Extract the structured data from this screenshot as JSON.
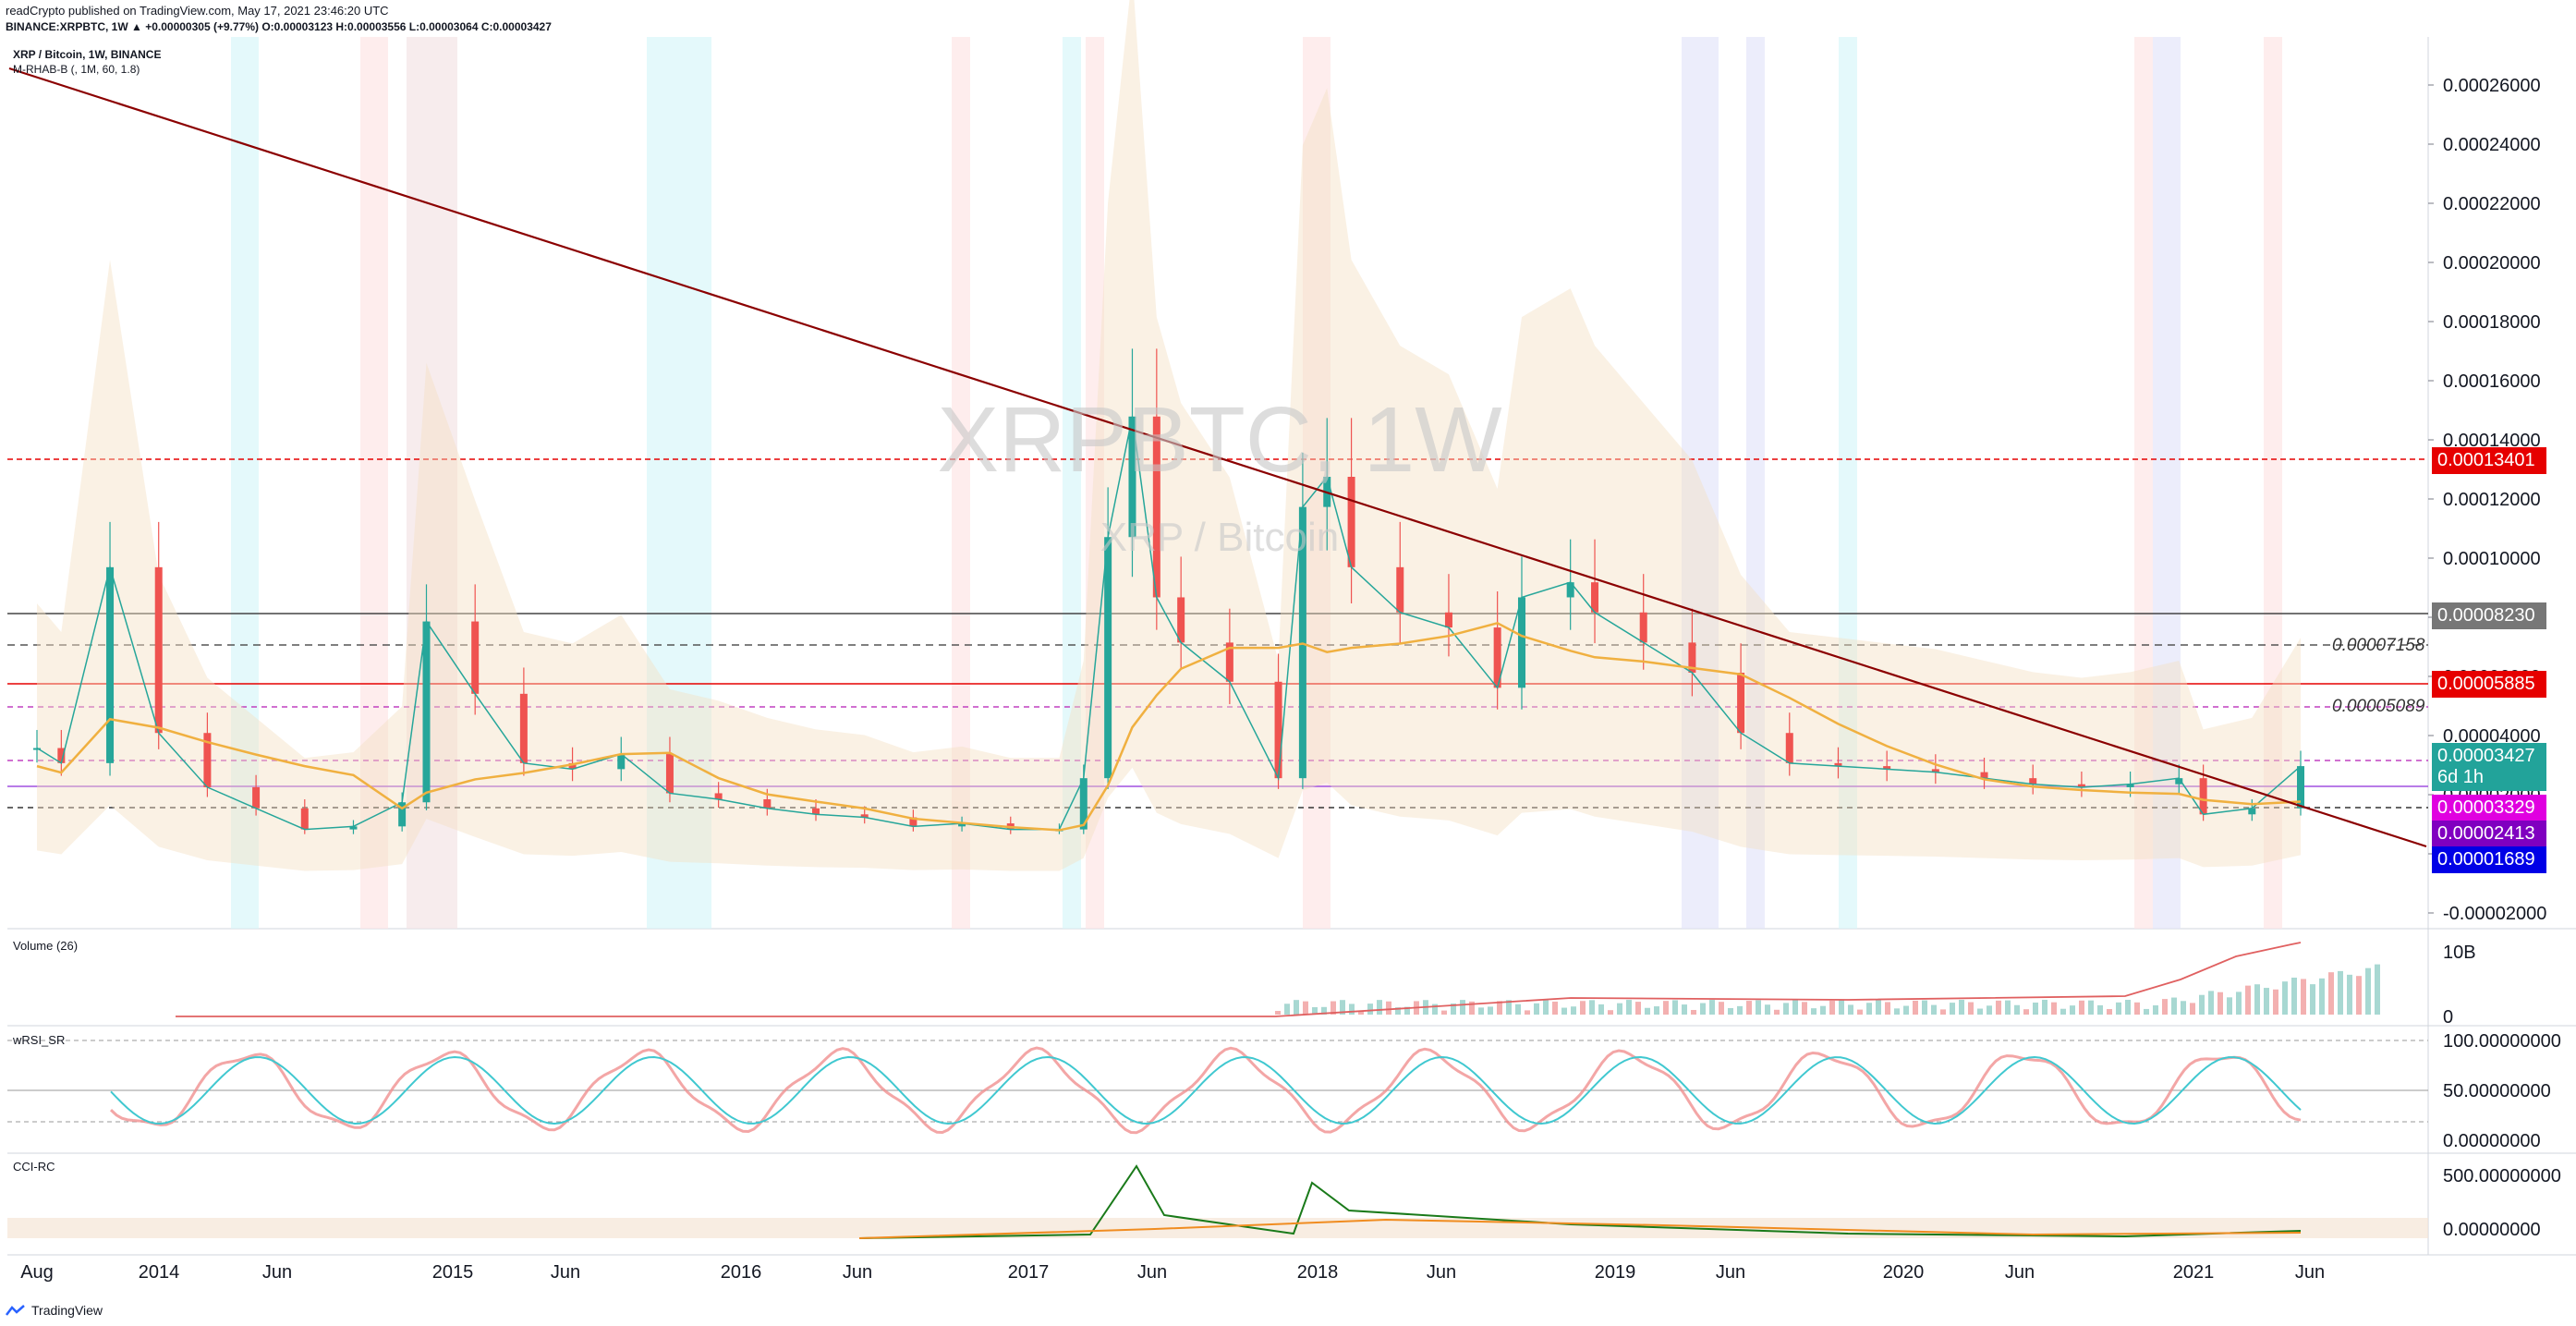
{
  "header": {
    "published": "readCrypto published on TradingView.com, May 17, 2021 23:46:20 UTC",
    "symbol_line": "BINANCE:XRPBTC, 1W ▲ +0.00000305 (+9.77%) O:0.00003123 H:0.00003556 L:0.00003064 C:0.00003427"
  },
  "legend": {
    "title": "XRP / Bitcoin, 1W, BINANCE",
    "indicator": "M-RHAB-B (, 1M, 60, 1.8)"
  },
  "watermark": {
    "symbol": "XRPBTC, 1W",
    "name": "XRP / Bitcoin"
  },
  "panes": {
    "volume": "Volume (26)",
    "rsi": "wRSI_SR",
    "cci": "CCI-RC"
  },
  "price_axis_ticks": [
    "0.00026000",
    "0.00024000",
    "0.00022000",
    "0.00020000",
    "0.00018000",
    "0.00016000",
    "0.00014000",
    "0.00012000",
    "0.00010000",
    "0.00008000",
    "0.00006000",
    "0.00004000",
    "0.00002000",
    "0.00000000",
    "-0.00002000"
  ],
  "volume_axis_ticks": [
    "10B",
    "0"
  ],
  "rsi_axis_ticks": [
    "100.00000000",
    "50.00000000",
    "0.00000000"
  ],
  "cci_axis_ticks": [
    "500.00000000",
    "0.00000000"
  ],
  "time_axis_labels": [
    "Aug",
    "2014",
    "Jun",
    "2015",
    "Jun",
    "2016",
    "Jun",
    "2017",
    "Jun",
    "2018",
    "Jun",
    "2019",
    "Jun",
    "2020",
    "Jun",
    "2021",
    "Jun"
  ],
  "price_labels": [
    {
      "text": "0.00013401",
      "color": "#e60000"
    },
    {
      "text": "0.00008230",
      "color": "#777777"
    },
    {
      "text": "0.00005885",
      "color": "#e60000"
    },
    {
      "text": "0.00003427",
      "sub": "6d 1h",
      "color": "#22a39a"
    },
    {
      "text": "0.00003329",
      "color": "#e000e0"
    },
    {
      "text": "0.00002413",
      "color": "#8000c0"
    },
    {
      "text": "0.00001689",
      "color": "#0000e6"
    }
  ],
  "level_labels": [
    "0.00007158",
    "0.00005089"
  ],
  "footer": {
    "brand": "TradingView"
  },
  "colors": {
    "trendline": "#8b0000",
    "ma_orange": "#f0b040",
    "ma_blue": "#3a7bd5",
    "up": "#26a69a",
    "down": "#ef5350"
  },
  "chart_data": {
    "type": "line",
    "title": "XRPBTC, 1W",
    "ylim": [
      -2e-05,
      0.00027
    ],
    "x": [
      "2013-08",
      "2013-09",
      "2013-11",
      "2014-01",
      "2014-03",
      "2014-05",
      "2014-07",
      "2014-09",
      "2014-11",
      "2014-12",
      "2015-02",
      "2015-04",
      "2015-06",
      "2015-08",
      "2015-10",
      "2015-12",
      "2016-02",
      "2016-04",
      "2016-06",
      "2016-08",
      "2016-10",
      "2016-12",
      "2017-02",
      "2017-03",
      "2017-04",
      "2017-05",
      "2017-06",
      "2017-07",
      "2017-09",
      "2017-11",
      "2017-12",
      "2018-01",
      "2018-02",
      "2018-04",
      "2018-06",
      "2018-08",
      "2018-09",
      "2018-11",
      "2018-12",
      "2019-02",
      "2019-04",
      "2019-06",
      "2019-08",
      "2019-10",
      "2019-12",
      "2020-02",
      "2020-04",
      "2020-06",
      "2020-08",
      "2020-10",
      "2020-12",
      "2021-01",
      "2021-03",
      "2021-05"
    ],
    "series": [
      {
        "name": "XRPBTC close",
        "values": [
          4e-05,
          3.5e-05,
          0.0001,
          4.5e-05,
          2.7e-05,
          2e-05,
          1.3e-05,
          1.4e-05,
          2.2e-05,
          8.2e-05,
          5.8e-05,
          3.5e-05,
          3.3e-05,
          3.8e-05,
          2.5e-05,
          2.3e-05,
          2e-05,
          1.8e-05,
          1.7e-05,
          1.4e-05,
          1.5e-05,
          1.3e-05,
          1.3e-05,
          3e-05,
          0.00011,
          0.00015,
          9e-05,
          7.5e-05,
          6.2e-05,
          3e-05,
          0.00012,
          0.00013,
          0.0001,
          8.5e-05,
          8e-05,
          6e-05,
          9e-05,
          9.5e-05,
          8.5e-05,
          7.5e-05,
          6.5e-05,
          4.5e-05,
          3.5e-05,
          3.4e-05,
          3.3e-05,
          3.2e-05,
          3e-05,
          2.8e-05,
          2.7e-05,
          2.8e-05,
          3e-05,
          1.8e-05,
          2e-05,
          3.4e-05
        ]
      }
    ]
  }
}
